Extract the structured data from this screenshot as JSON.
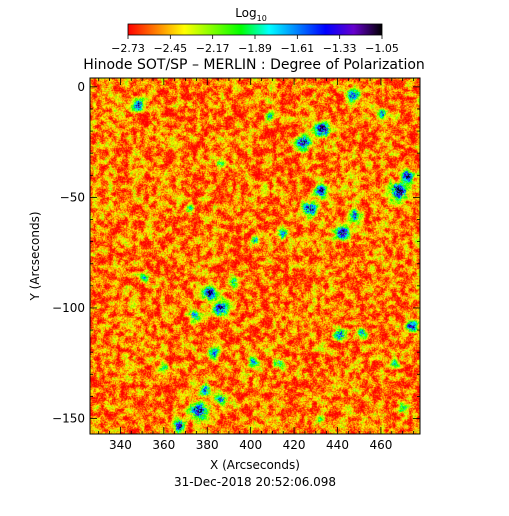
{
  "chart_data": {
    "type": "heatmap",
    "title": "Hinode SOT/SP – MERLIN : Degree of Polarization",
    "xlabel": "X (Arcseconds)",
    "ylabel": "Y (Arcseconds)",
    "timestamp": "31-Dec-2018 20:52:06.098",
    "xlim": [
      326,
      478
    ],
    "ylim": [
      -157,
      4
    ],
    "x_ticks": [
      340,
      360,
      380,
      400,
      420,
      440,
      460
    ],
    "y_ticks": [
      0,
      -50,
      -100,
      -150
    ],
    "colorbar": {
      "label": "Log10",
      "label_main": "Log",
      "label_sub": "10",
      "range": [
        -2.73,
        -1.05
      ],
      "ticks": [
        "-2.73",
        "-2.45",
        "-2.17",
        "-1.89",
        "-1.61",
        "-1.33",
        "-1.05"
      ],
      "colors": [
        "#ff0000",
        "#ff7f00",
        "#ffff00",
        "#7fff00",
        "#00ff00",
        "#00ffff",
        "#0080ff",
        "#0000ff",
        "#6600cc",
        "#000000"
      ]
    },
    "background_level": -2.55,
    "patches": [
      {
        "x": 348,
        "y": -8,
        "level": -1.4,
        "radius": 2.5
      },
      {
        "x": 386,
        "y": -35,
        "level": -1.9,
        "radius": 2.0
      },
      {
        "x": 409,
        "y": -13,
        "level": -1.9,
        "radius": 2.0
      },
      {
        "x": 424,
        "y": -25,
        "level": -1.2,
        "radius": 3.0
      },
      {
        "x": 433,
        "y": -19,
        "level": -1.1,
        "radius": 3.0
      },
      {
        "x": 447,
        "y": -4,
        "level": -1.4,
        "radius": 2.5
      },
      {
        "x": 460,
        "y": -12,
        "level": -1.5,
        "radius": 2.0
      },
      {
        "x": 427,
        "y": -55,
        "level": -1.3,
        "radius": 3.0
      },
      {
        "x": 432,
        "y": -47,
        "level": -1.2,
        "radius": 2.5
      },
      {
        "x": 442,
        "y": -66,
        "level": -1.2,
        "radius": 3.0
      },
      {
        "x": 448,
        "y": -58,
        "level": -1.5,
        "radius": 2.5
      },
      {
        "x": 468,
        "y": -47,
        "level": -1.1,
        "radius": 3.5
      },
      {
        "x": 472,
        "y": -40,
        "level": -1.3,
        "radius": 2.5
      },
      {
        "x": 415,
        "y": -66,
        "level": -1.6,
        "radius": 2.0
      },
      {
        "x": 402,
        "y": -69,
        "level": -1.8,
        "radius": 2.0
      },
      {
        "x": 372,
        "y": -55,
        "level": -1.9,
        "radius": 2.0
      },
      {
        "x": 381,
        "y": -93,
        "level": -1.3,
        "radius": 3.0
      },
      {
        "x": 386,
        "y": -100,
        "level": -1.3,
        "radius": 3.0
      },
      {
        "x": 374,
        "y": -103,
        "level": -1.6,
        "radius": 2.5
      },
      {
        "x": 392,
        "y": -88,
        "level": -1.7,
        "radius": 2.0
      },
      {
        "x": 351,
        "y": -86,
        "level": -1.9,
        "radius": 2.0
      },
      {
        "x": 383,
        "y": -120,
        "level": -1.7,
        "radius": 2.5
      },
      {
        "x": 379,
        "y": -137,
        "level": -1.5,
        "radius": 2.5
      },
      {
        "x": 376,
        "y": -146,
        "level": -1.2,
        "radius": 3.5
      },
      {
        "x": 367,
        "y": -153,
        "level": -1.4,
        "radius": 2.5
      },
      {
        "x": 386,
        "y": -141,
        "level": -1.5,
        "radius": 2.5
      },
      {
        "x": 401,
        "y": -124,
        "level": -1.6,
        "radius": 2.0
      },
      {
        "x": 413,
        "y": -125,
        "level": -1.7,
        "radius": 2.0
      },
      {
        "x": 441,
        "y": -112,
        "level": -1.5,
        "radius": 2.5
      },
      {
        "x": 451,
        "y": -111,
        "level": -1.7,
        "radius": 2.0
      },
      {
        "x": 474,
        "y": -108,
        "level": -1.5,
        "radius": 2.5
      },
      {
        "x": 466,
        "y": -125,
        "level": -1.8,
        "radius": 2.0
      },
      {
        "x": 470,
        "y": -145,
        "level": -1.6,
        "radius": 2.0
      },
      {
        "x": 432,
        "y": -150,
        "level": -1.9,
        "radius": 2.0
      },
      {
        "x": 360,
        "y": -127,
        "level": -1.9,
        "radius": 2.0
      }
    ]
  }
}
